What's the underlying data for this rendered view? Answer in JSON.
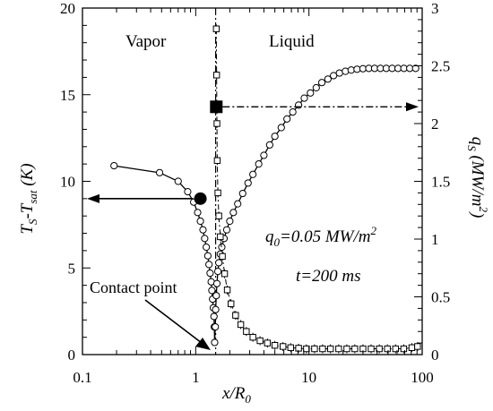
{
  "chart_data": [
    {
      "type": "line",
      "title": "",
      "xlabel": "x/R0",
      "ylabel": "TS-Tsat (K)",
      "x_scale": "log",
      "xlim": [
        0.1,
        100
      ],
      "ylim": [
        0,
        20
      ],
      "x_ticks": [
        "0.1",
        "1",
        "10",
        "100"
      ],
      "y_ticks": [
        "0",
        "5",
        "10",
        "15",
        "20"
      ],
      "grid": false,
      "series": [
        {
          "marker": "open-circle",
          "axis": "left",
          "x": [
            0.19,
            0.48,
            0.7,
            0.85,
            0.96,
            1.04,
            1.1,
            1.16,
            1.2,
            1.24,
            1.28,
            1.31,
            1.34,
            1.37,
            1.39,
            1.41,
            1.43,
            1.45,
            1.46,
            1.47,
            1.49,
            1.5,
            1.52,
            1.54,
            1.57,
            1.6,
            1.65,
            1.7,
            1.78,
            1.88,
            2.0,
            2.15,
            2.35,
            2.6,
            2.9,
            3.2,
            3.6,
            4.0,
            4.5,
            5.0,
            5.7,
            6.4,
            7.2,
            8.1,
            9.1,
            10.3,
            11.6,
            13.0,
            14.7,
            16.5,
            18.6,
            21.0,
            23.6,
            26.6,
            30.0,
            33.8,
            38.0,
            42.8,
            48.2,
            54.3,
            61.2,
            69.0,
            77.7,
            87.5
          ],
          "y": [
            10.9,
            10.5,
            10.0,
            9.4,
            8.8,
            8.2,
            7.7,
            7.2,
            6.7,
            6.2,
            5.7,
            5.2,
            4.7,
            4.2,
            3.7,
            3.2,
            2.7,
            2.2,
            1.6,
            0.7,
            1.6,
            2.6,
            3.4,
            4.1,
            4.8,
            5.3,
            5.8,
            6.2,
            6.7,
            7.2,
            7.7,
            8.2,
            8.7,
            9.3,
            9.9,
            10.4,
            11.0,
            11.5,
            12.1,
            12.6,
            13.1,
            13.6,
            14.0,
            14.4,
            14.8,
            15.1,
            15.4,
            15.7,
            15.9,
            16.1,
            16.25,
            16.35,
            16.42,
            16.47,
            16.5,
            16.52,
            16.52,
            16.52,
            16.52,
            16.52,
            16.52,
            16.52,
            16.52,
            16.52
          ]
        },
        {
          "marker": "open-square-with-errorbars",
          "axis": "right",
          "x": [
            1.52,
            1.53,
            1.54,
            1.55,
            1.57,
            1.6,
            1.65,
            1.72,
            1.8,
            1.9,
            2.05,
            2.25,
            2.5,
            2.8,
            3.2,
            3.7,
            4.3,
            5.0,
            5.9,
            6.9,
            8.1,
            9.5,
            11.2,
            13.2,
            15.5,
            18.3,
            21.6,
            25.4,
            30.0,
            35.4,
            41.8,
            49.3,
            58.2,
            68.7,
            81.0,
            91.0
          ],
          "y": [
            2.82,
            2.42,
            2.0,
            1.68,
            1.4,
            1.2,
            1.02,
            0.85,
            0.7,
            0.56,
            0.44,
            0.34,
            0.26,
            0.2,
            0.15,
            0.12,
            0.1,
            0.08,
            0.07,
            0.06,
            0.055,
            0.05,
            0.05,
            0.05,
            0.05,
            0.05,
            0.05,
            0.05,
            0.05,
            0.05,
            0.05,
            0.05,
            0.05,
            0.05,
            0.06,
            0.07
          ]
        }
      ],
      "right_axis": {
        "label": "qS (MW/m2)",
        "ylim": [
          0,
          3
        ],
        "ticks": [
          "0",
          "0.5",
          "1",
          "1.5",
          "2",
          "2.5",
          "3"
        ]
      },
      "markers": [
        {
          "shape": "filled-circle",
          "x": 1.1,
          "y": 9.0,
          "arrow": "left"
        },
        {
          "shape": "filled-square",
          "x": 1.52,
          "y": 14.3,
          "arrow": "right"
        }
      ],
      "vertical_line": {
        "x": 1.5
      },
      "annotations": {
        "vapor": "Vapor",
        "liquid": "Liquid",
        "contact": "Contact point",
        "q0": "q0=0.05 MW/m2",
        "t": "t=200 ms"
      }
    }
  ]
}
